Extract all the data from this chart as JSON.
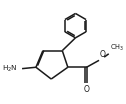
{
  "bg_color": "#ffffff",
  "line_color": "#1a1a1a",
  "line_width": 1.1,
  "figsize": [
    1.26,
    1.04
  ],
  "dpi": 100,
  "xlim": [
    0.5,
    9.0
  ],
  "ylim": [
    1.0,
    8.5
  ]
}
